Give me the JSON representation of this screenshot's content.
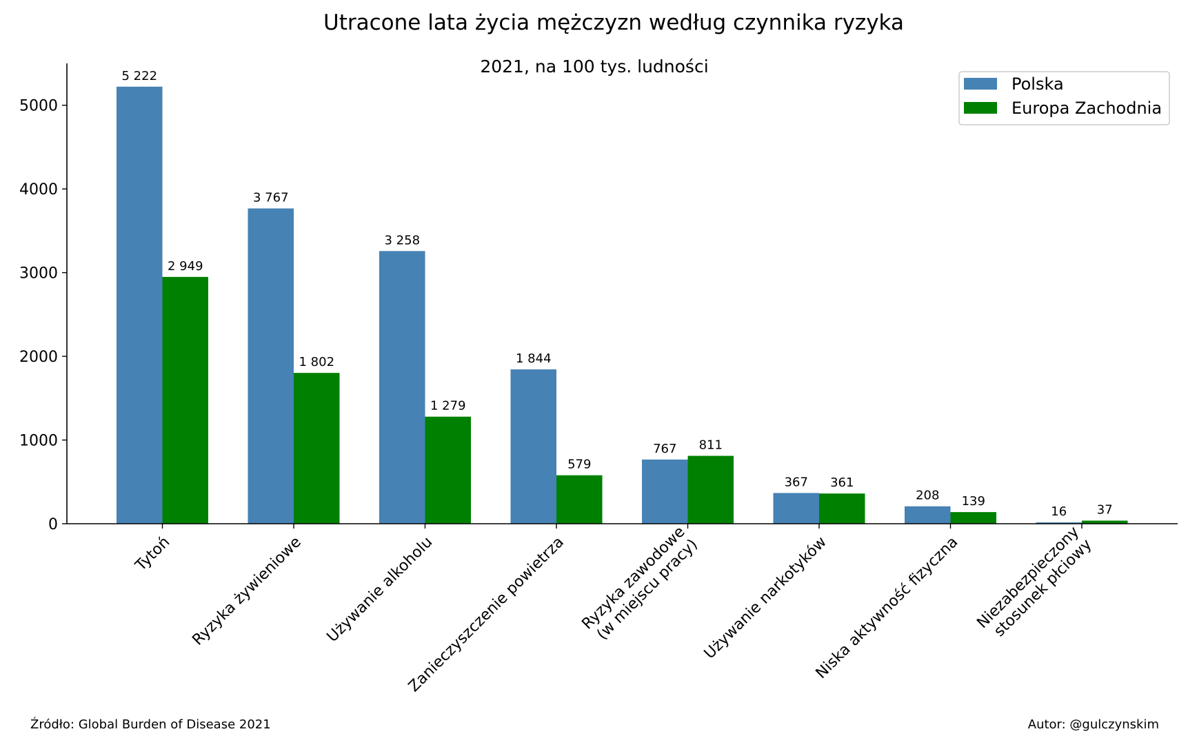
{
  "chart_data": {
    "type": "bar",
    "title": "Utracone lata życia mężczyzn według czynnika ryzyka",
    "subtitle": "2021, na 100 tys. ludności",
    "categories": [
      [
        "Tytoń"
      ],
      [
        "Ryzyka żywieniowe"
      ],
      [
        "Używanie alkoholu"
      ],
      [
        "Zanieczyszczenie powietrza"
      ],
      [
        "Ryzyka zawodowe",
        "(w miejscu pracy)"
      ],
      [
        "Używanie narkotyków"
      ],
      [
        "Niska aktywność fizyczna"
      ],
      [
        "Niezabezpieczony",
        "stosunek płciowy"
      ]
    ],
    "series": [
      {
        "name": "Polska",
        "color": "#4682b4",
        "values": [
          5222,
          3767,
          3258,
          1844,
          767,
          367,
          208,
          16
        ],
        "labels": [
          "5 222",
          "3 767",
          "3 258",
          "1 844",
          "767",
          "367",
          "208",
          "16"
        ]
      },
      {
        "name": "Europa Zachodnia",
        "color": "#008000",
        "values": [
          2949,
          1802,
          1279,
          579,
          811,
          361,
          139,
          37
        ],
        "labels": [
          "2 949",
          "1 802",
          "1 279",
          "579",
          "811",
          "361",
          "139",
          "37"
        ]
      }
    ],
    "ylim": [
      0,
      5500
    ],
    "yticks": [
      "0",
      "1000",
      "2000",
      "3000",
      "4000",
      "5000"
    ],
    "ytick_values": [
      0,
      1000,
      2000,
      3000,
      4000,
      5000
    ],
    "legend_position": "top-right",
    "grid": false
  },
  "footer": {
    "source": "Źródło: Global Burden of Disease 2021",
    "author": "Autor: @gulczynskim"
  }
}
